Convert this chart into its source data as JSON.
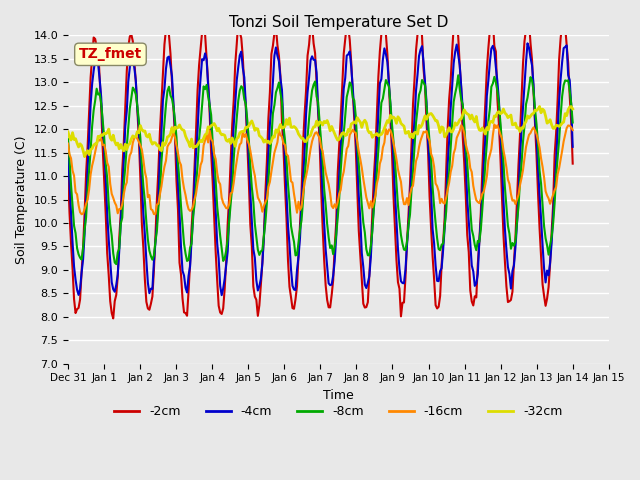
{
  "title": "Tonzi Soil Temperature Set D",
  "xlabel": "Time",
  "ylabel": "Soil Temperature (C)",
  "ylim": [
    7.0,
    14.0
  ],
  "yticks": [
    7.0,
    7.5,
    8.0,
    8.5,
    9.0,
    9.5,
    10.0,
    10.5,
    11.0,
    11.5,
    12.0,
    12.5,
    13.0,
    13.5,
    14.0
  ],
  "xtick_labels": [
    "Dec 31",
    "Jan 1",
    "Jan 2",
    "Jan 3",
    "Jan 4",
    "Jan 5",
    "Jan 6",
    "Jan 7",
    "Jan 8",
    "Jan 9",
    "Jan 10",
    "Jan 11",
    "Jan 12",
    "Jan 13",
    "Jan 14",
    "Jan 15"
  ],
  "line_colors": {
    "-2cm": "#cc0000",
    "-4cm": "#0000cc",
    "-8cm": "#00aa00",
    "-16cm": "#ff8800",
    "-32cm": "#dddd00"
  },
  "line_widths": {
    "-2cm": 1.5,
    "-4cm": 1.5,
    "-8cm": 1.5,
    "-16cm": 1.5,
    "-32cm": 2.0
  },
  "annotation_text": "TZ_fmet",
  "annotation_color": "#cc0000",
  "annotation_bg": "#ffffcc",
  "bg_color": "#e8e8e8",
  "plot_bg_color": "#e8e8e8",
  "grid_color": "#ffffff",
  "n_points": 336,
  "days": 14,
  "depths": [
    "-2cm",
    "-4cm",
    "-8cm",
    "-16cm",
    "-32cm"
  ],
  "mean_temps": [
    11.0,
    11.0,
    11.0,
    11.0,
    11.7
  ],
  "amplitudes": [
    3.0,
    2.5,
    1.8,
    0.8,
    0.2
  ],
  "phase_lags": [
    0.0,
    0.8,
    1.8,
    3.5,
    7.0
  ],
  "trend_slopes": [
    0.02,
    0.02,
    0.02,
    0.02,
    0.04
  ]
}
